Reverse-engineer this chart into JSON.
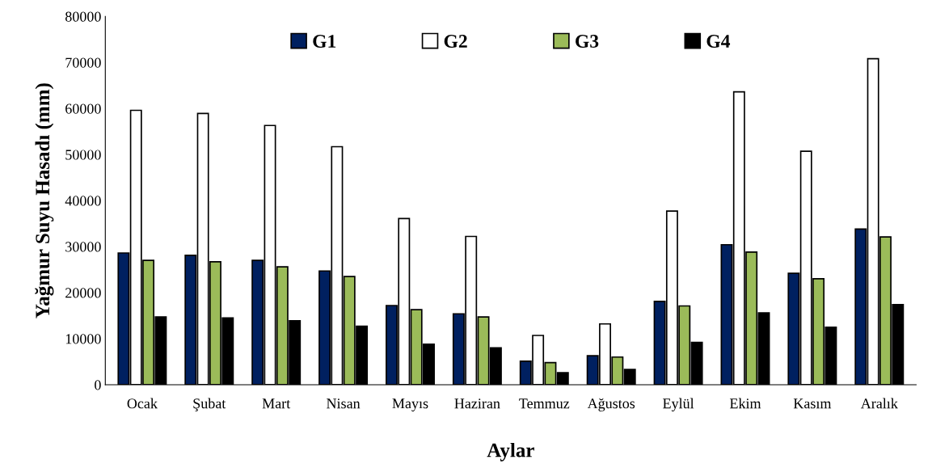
{
  "chart_data": {
    "type": "bar",
    "xlabel": "Aylar",
    "ylabel": "Yağmur Suyu Hasadı (mm)",
    "categories": [
      "Ocak",
      "Şubat",
      "Mart",
      "Nisan",
      "Mayıs",
      "Haziran",
      "Temmuz",
      "Ağustos",
      "Eylül",
      "Ekim",
      "Kasım",
      "Aralık"
    ],
    "series": [
      {
        "name": "G1",
        "color": "#002060",
        "values": [
          28600,
          28100,
          27000,
          24700,
          17200,
          15400,
          5100,
          6300,
          18100,
          30400,
          24200,
          33800
        ]
      },
      {
        "name": "G2",
        "color": "#ffffff",
        "values": [
          59600,
          58900,
          56300,
          51700,
          36100,
          32200,
          10700,
          13200,
          37700,
          63600,
          50700,
          70800
        ]
      },
      {
        "name": "G3",
        "color": "#9bbb59",
        "values": [
          27000,
          26700,
          25600,
          23500,
          16300,
          14700,
          4800,
          6000,
          17100,
          28800,
          23000,
          32100
        ]
      },
      {
        "name": "G4",
        "color": "#000000",
        "values": [
          14700,
          14500,
          13900,
          12700,
          8800,
          8000,
          2600,
          3300,
          9200,
          15600,
          12500,
          17400
        ]
      }
    ],
    "ylim": [
      0,
      80000
    ],
    "yticks": [
      0,
      10000,
      20000,
      30000,
      40000,
      50000,
      60000,
      70000,
      80000
    ],
    "grid": false,
    "legend": "top"
  }
}
